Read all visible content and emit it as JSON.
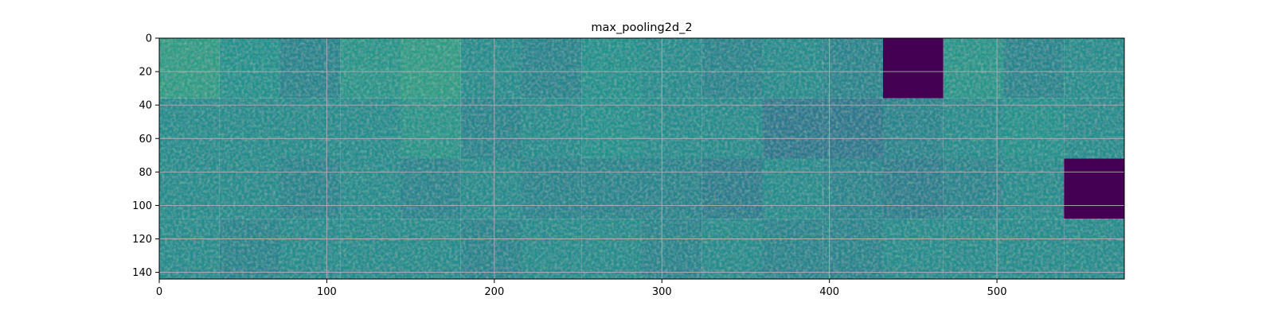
{
  "chart_data": {
    "type": "heatmap",
    "title": "max_pooling2d_2",
    "xlabel": "",
    "ylabel": "",
    "xlim": [
      0,
      576
    ],
    "ylim": [
      144,
      0
    ],
    "x_ticks": [
      0,
      100,
      200,
      300,
      400,
      500
    ],
    "y_ticks": [
      0,
      20,
      40,
      60,
      80,
      100,
      120,
      140
    ],
    "grid": true,
    "colormap": "viridis",
    "tile_grid": {
      "rows": 4,
      "cols": 16,
      "tile_size": 36
    },
    "tiles_mean_activation": [
      [
        0.55,
        0.5,
        0.45,
        0.52,
        0.55,
        0.48,
        0.45,
        0.5,
        0.48,
        0.45,
        0.48,
        0.45,
        0.0,
        0.52,
        0.45,
        0.48
      ],
      [
        0.48,
        0.48,
        0.48,
        0.48,
        0.52,
        0.45,
        0.48,
        0.5,
        0.48,
        0.48,
        0.4,
        0.4,
        0.45,
        0.48,
        0.5,
        0.48
      ],
      [
        0.48,
        0.48,
        0.45,
        0.48,
        0.45,
        0.48,
        0.45,
        0.45,
        0.45,
        0.42,
        0.48,
        0.45,
        0.42,
        0.45,
        0.48,
        0.0
      ],
      [
        0.48,
        0.45,
        0.48,
        0.48,
        0.48,
        0.45,
        0.48,
        0.48,
        0.45,
        0.48,
        0.45,
        0.45,
        0.48,
        0.48,
        0.48,
        0.48
      ]
    ]
  },
  "colors": {
    "viridis_dark": "#440154",
    "viridis_mid": "#21918c",
    "viridis_bright": "#fde725",
    "grid": "#b0b0b0",
    "axis": "#000000"
  }
}
